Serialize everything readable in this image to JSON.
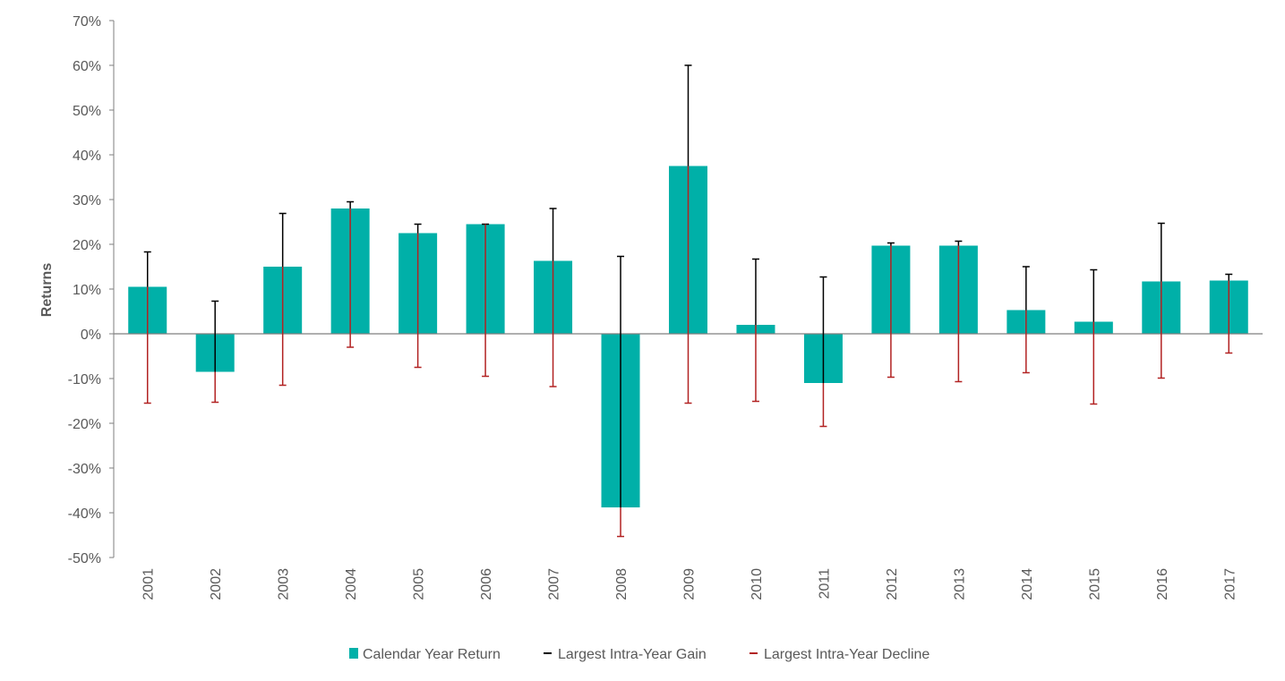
{
  "chart_data": {
    "type": "bar",
    "title": "",
    "xlabel": "",
    "ylabel": "Returns",
    "ylim": [
      -50,
      70
    ],
    "y_ticks": [
      70,
      60,
      50,
      40,
      30,
      20,
      10,
      0,
      -10,
      -20,
      -30,
      -40,
      -50
    ],
    "y_tick_labels": [
      "70%",
      "60%",
      "50%",
      "40%",
      "30%",
      "20%",
      "10%",
      "0%",
      "-10%",
      "-20%",
      "-30%",
      "-40%",
      "-50%"
    ],
    "grid": false,
    "legend_position": "bottom",
    "categories": [
      "2001",
      "2002",
      "2003",
      "2004",
      "2005",
      "2006",
      "2007",
      "2008",
      "2009",
      "2010",
      "2011",
      "2012",
      "2013",
      "2014",
      "2015",
      "2016",
      "2017"
    ],
    "series": [
      {
        "name": "Calendar Year Return",
        "kind": "bar",
        "color": "#00b0a8",
        "values": [
          10.5,
          -8.5,
          15.0,
          28.0,
          22.5,
          24.5,
          16.3,
          -38.8,
          37.5,
          2.0,
          -11.0,
          19.7,
          19.7,
          5.3,
          2.7,
          11.7,
          11.9
        ]
      },
      {
        "name": "Largest Intra-Year Gain",
        "kind": "error-up",
        "color": "#000000",
        "values": [
          18.3,
          7.3,
          26.9,
          29.5,
          24.5,
          24.5,
          28.0,
          17.3,
          60.0,
          16.7,
          12.7,
          20.3,
          20.7,
          15.0,
          14.3,
          24.7,
          13.3
        ]
      },
      {
        "name": "Largest Intra-Year Decline",
        "kind": "error-down",
        "color": "#b22222",
        "values": [
          -15.5,
          -15.3,
          -11.5,
          -3.0,
          -7.5,
          -9.5,
          -11.8,
          -45.3,
          -15.5,
          -15.1,
          -20.7,
          -9.7,
          -10.7,
          -8.7,
          -15.7,
          -9.9,
          -4.3
        ]
      }
    ]
  },
  "colors": {
    "bar": "#00b0a8",
    "gain": "#000000",
    "decline": "#b22222",
    "axis": "#7f7f7f",
    "text": "#595959"
  }
}
